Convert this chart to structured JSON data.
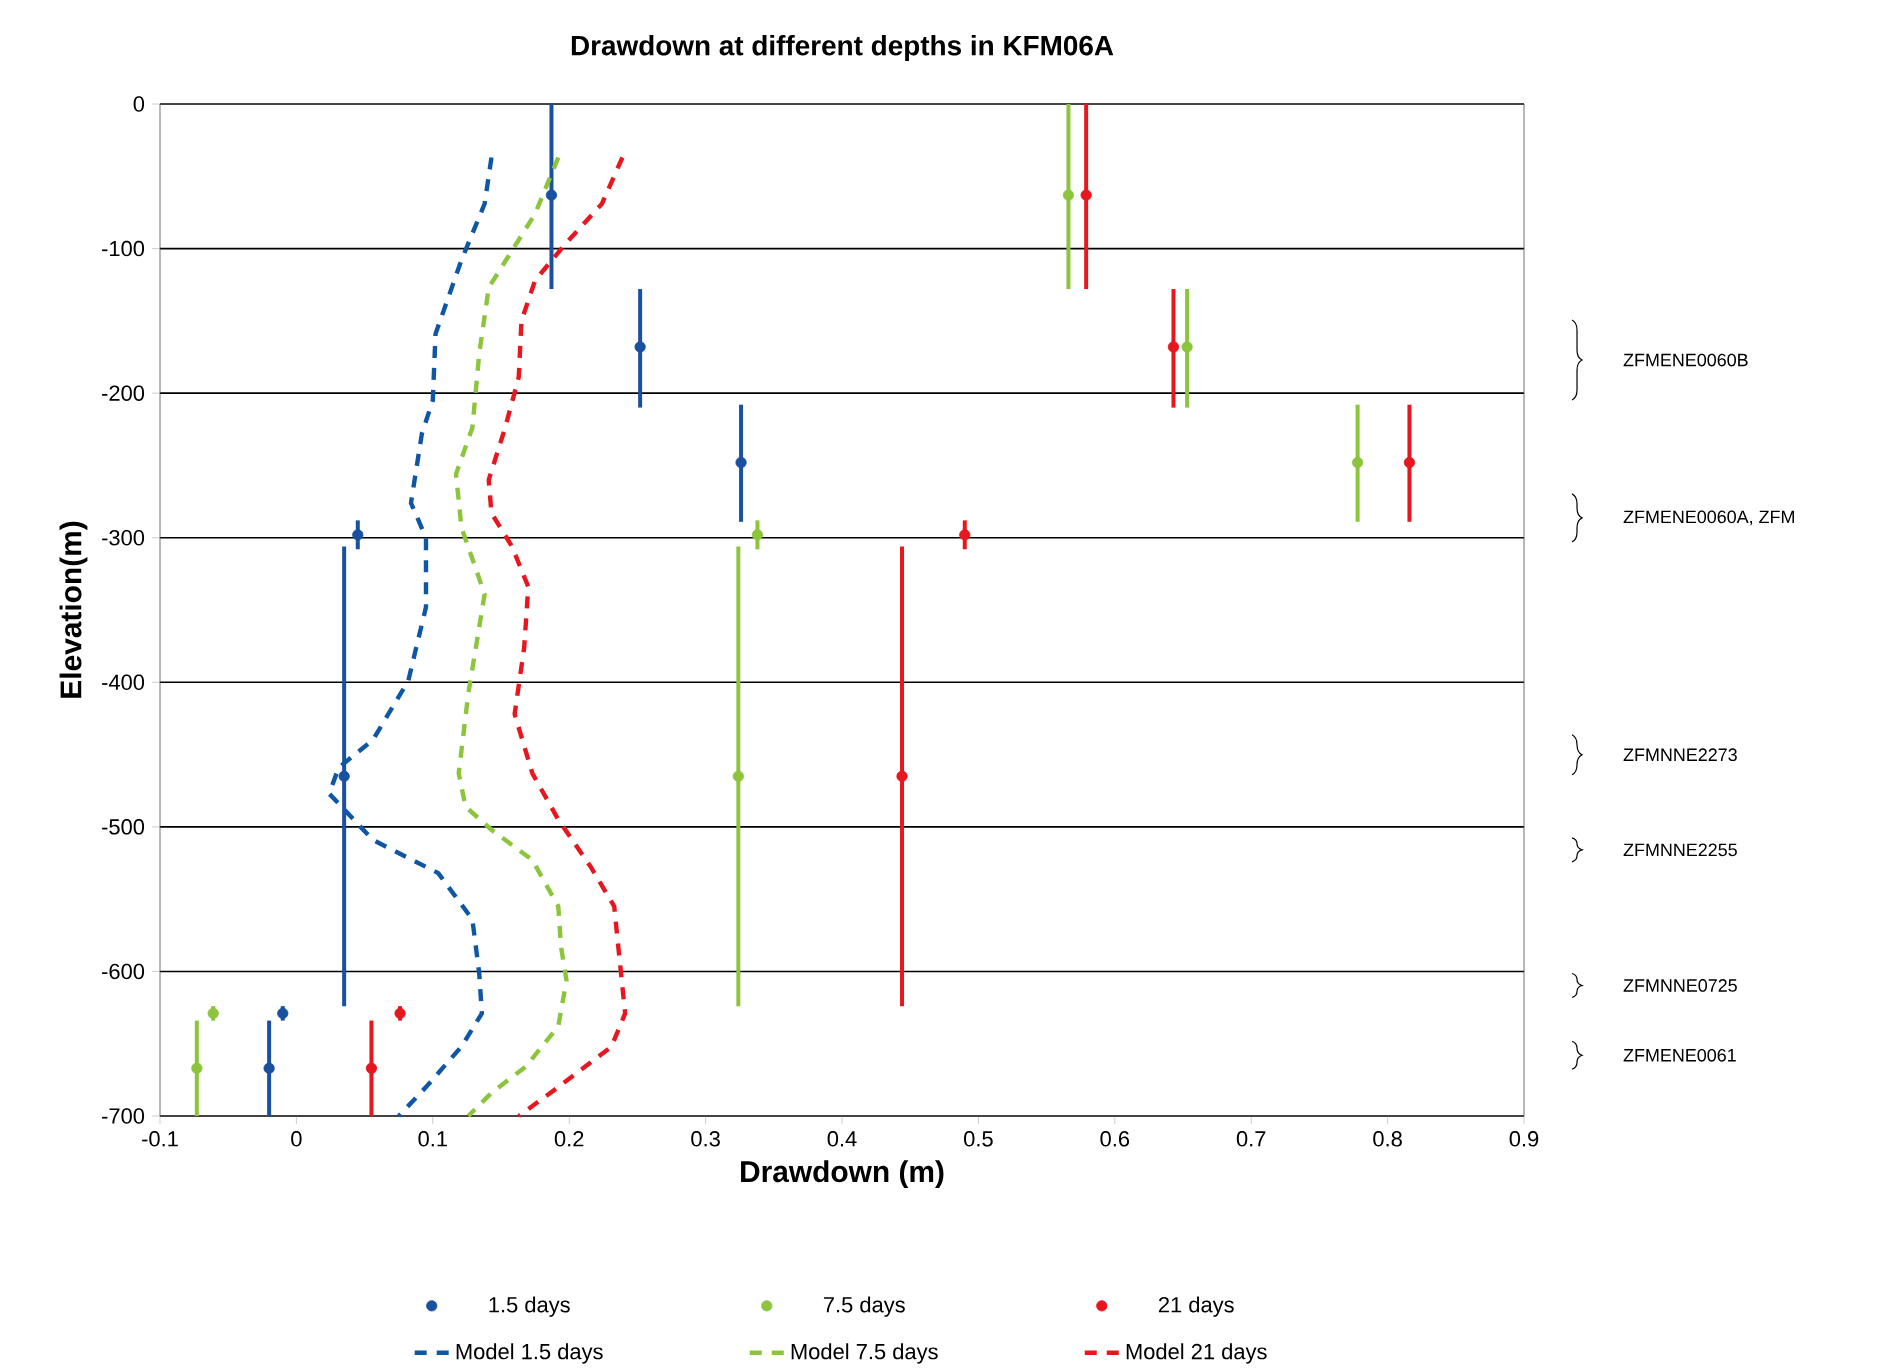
{
  "chart_data": {
    "type": "scatter",
    "title": "Drawdown at different depths in KFM06A",
    "xlabel": "Drawdown (m)",
    "ylabel": "Elevation(m)",
    "xlim": [
      -0.1,
      0.9
    ],
    "xticks": [
      -0.1,
      0,
      0.1,
      0.2,
      0.3,
      0.4,
      0.5,
      0.6,
      0.7,
      0.8,
      0.9
    ],
    "ylim": [
      -700,
      0
    ],
    "yticks": [
      -700,
      -600,
      -500,
      -400,
      -300,
      -200,
      -100,
      0
    ],
    "grid": "y",
    "legend": "bottom",
    "series": [
      {
        "name": "1.5 days",
        "marker": "circle",
        "color": "#1a50a0",
        "x": [
          0.187,
          0.252,
          0.326,
          0.045,
          0.035,
          -0.01,
          -0.02
        ],
        "values": [
          -63,
          -168,
          -248,
          -298,
          -465,
          -629,
          -667
        ],
        "errors": [
          [
            -128,
            0
          ],
          [
            -210,
            -128
          ],
          [
            -289,
            -208
          ],
          [
            -308,
            -288
          ],
          [
            -624,
            -306
          ],
          [
            -634,
            -624
          ],
          [
            -700,
            -634
          ]
        ]
      },
      {
        "name": "7.5 days",
        "marker": "circle",
        "color": "#8cc43c",
        "x": [
          0.566,
          0.653,
          0.778,
          0.338,
          0.324,
          -0.061,
          -0.073
        ],
        "values": [
          -63,
          -168,
          -248,
          -298,
          -465,
          -629,
          -667
        ],
        "errors": [
          [
            -128,
            0
          ],
          [
            -210,
            -128
          ],
          [
            -289,
            -208
          ],
          [
            -308,
            -288
          ],
          [
            -624,
            -306
          ],
          [
            -634,
            -624
          ],
          [
            -700,
            -634
          ]
        ]
      },
      {
        "name": "21 days",
        "marker": "circle",
        "color": "#e8161e",
        "x": [
          0.579,
          0.643,
          0.816,
          0.49,
          0.444,
          0.076,
          0.055
        ],
        "values": [
          -63,
          -168,
          -248,
          -298,
          -465,
          -629,
          -667
        ],
        "errors": [
          [
            -128,
            0
          ],
          [
            -210,
            -128
          ],
          [
            -289,
            -208
          ],
          [
            -308,
            -288
          ],
          [
            -624,
            -306
          ],
          [
            -634,
            -624
          ],
          [
            -700,
            -634
          ]
        ]
      },
      {
        "name": "Model 1.5 days",
        "type": "line",
        "line_style": "dashed",
        "color": "#0f57a5",
        "x": [
          0.143,
          0.138,
          0.121,
          0.102,
          0.1,
          0.092,
          0.084,
          0.095,
          0.095,
          0.082,
          0.056,
          0.031,
          0.024,
          0.056,
          0.104,
          0.129,
          0.134,
          0.136,
          0.121,
          0.095,
          0.075
        ],
        "values": [
          -37,
          -69,
          -108,
          -159,
          -205,
          -228,
          -276,
          -300,
          -348,
          -399,
          -440,
          -459,
          -477,
          -509,
          -532,
          -564,
          -601,
          -629,
          -652,
          -680,
          -700
        ]
      },
      {
        "name": "Model 7.5 days",
        "type": "line",
        "line_style": "dashed",
        "color": "#8cc43c",
        "x": [
          0.192,
          0.175,
          0.155,
          0.141,
          0.134,
          0.129,
          0.117,
          0.121,
          0.138,
          0.126,
          0.119,
          0.124,
          0.143,
          0.173,
          0.192,
          0.194,
          0.198,
          0.192,
          0.168,
          0.143,
          0.126
        ],
        "values": [
          -37,
          -76,
          -106,
          -127,
          -173,
          -224,
          -256,
          -293,
          -339,
          -408,
          -463,
          -486,
          -502,
          -523,
          -555,
          -583,
          -606,
          -638,
          -666,
          -684,
          -700
        ]
      },
      {
        "name": "Model 21 days",
        "type": "line",
        "line_style": "dashed",
        "color": "#e8161e",
        "x": [
          0.239,
          0.224,
          0.197,
          0.175,
          0.165,
          0.163,
          0.153,
          0.141,
          0.143,
          0.158,
          0.17,
          0.167,
          0.16,
          0.173,
          0.192,
          0.216,
          0.233,
          0.236,
          0.241,
          0.231,
          0.192,
          0.163
        ],
        "values": [
          -37,
          -69,
          -97,
          -122,
          -150,
          -189,
          -224,
          -260,
          -283,
          -306,
          -334,
          -376,
          -422,
          -463,
          -495,
          -528,
          -555,
          -583,
          -629,
          -652,
          -680,
          -700
        ]
      }
    ],
    "annotations": [
      "ZFMENE0060B",
      "ZFMENE0060A, ZFM",
      "ZFMNNE2273",
      "ZFMNNE2255",
      "ZFMNNE0725",
      "ZFMENE0061"
    ]
  }
}
